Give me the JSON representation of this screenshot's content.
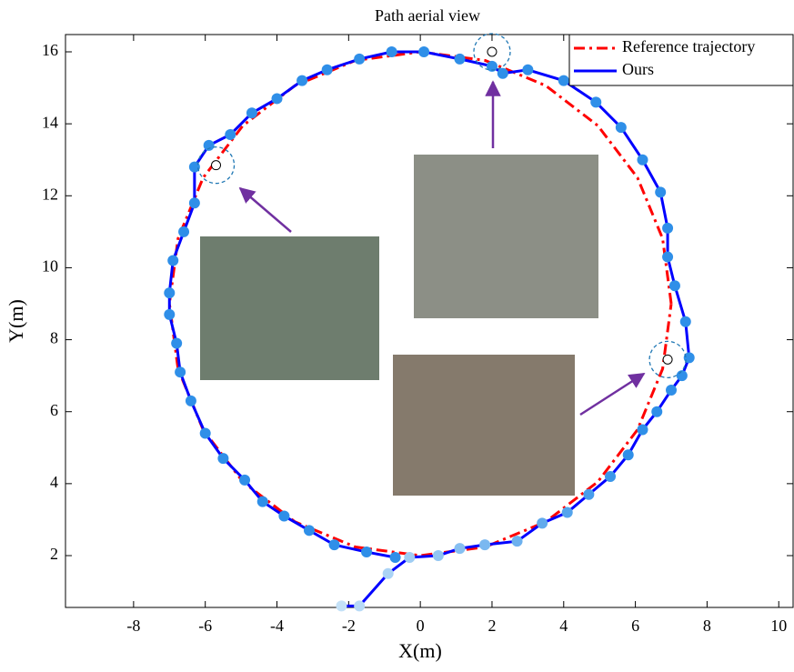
{
  "chart_data": {
    "type": "line",
    "title": "Path aerial view",
    "xlabel": "X(m)",
    "ylabel": "Y(m)",
    "xlim": [
      -9.9,
      10.4
    ],
    "ylim": [
      0.56,
      16.48
    ],
    "xticks": [
      -8,
      -6,
      -4,
      -2,
      0,
      2,
      4,
      6,
      8,
      10
    ],
    "yticks": [
      2,
      4,
      6,
      8,
      10,
      12,
      14,
      16
    ],
    "legend": "upper right",
    "series": [
      {
        "name": "Reference trajectory",
        "color": "#ff0000",
        "style": "dashdot",
        "x": [
          7,
          6.76,
          6.06,
          4.95,
          3.5,
          1.81,
          0,
          -1.81,
          -3.5,
          -4.95,
          -6.06,
          -6.76,
          -7,
          -6.76,
          -6.06,
          -4.95,
          -3.5,
          -1.81,
          0,
          1.81,
          3.5,
          4.95,
          6.06,
          6.76,
          7
        ],
        "values": [
          9,
          10.81,
          12.5,
          13.95,
          15.06,
          15.76,
          16,
          15.76,
          15.06,
          13.95,
          12.5,
          10.81,
          9,
          7.19,
          5.5,
          4.05,
          2.94,
          2.24,
          2,
          2.24,
          2.94,
          4.05,
          5.5,
          7.19,
          9
        ]
      },
      {
        "name": "Ours",
        "color": "#0000ff",
        "style": "solid",
        "marker_colors": [
          "#c4e1f7",
          "#2f8fe8"
        ],
        "x": [
          -2.2,
          -1.7,
          -0.9,
          -0.3,
          0.5,
          1.1,
          1.8,
          2.7,
          3.4,
          4.1,
          4.7,
          5.3,
          5.8,
          6.2,
          6.6,
          7.0,
          7.3,
          7.5,
          7.4,
          7.1,
          6.9,
          6.9,
          6.7,
          6.2,
          5.6,
          4.9,
          4.0,
          3.0,
          2.3,
          2.0,
          1.1,
          0.1,
          -0.8,
          -1.7,
          -2.6,
          -3.3,
          -4.0,
          -4.7,
          -5.3,
          -5.9,
          -6.3,
          -6.3,
          -6.6,
          -6.9,
          -7.0,
          -7.0,
          -6.8,
          -6.7,
          -6.4,
          -6.0,
          -5.5,
          -4.9,
          -4.4,
          -3.8,
          -3.1,
          -2.4,
          -1.5,
          -0.7
        ],
        "values": [
          0.6,
          0.6,
          1.5,
          1.95,
          2.0,
          2.2,
          2.3,
          2.4,
          2.9,
          3.2,
          3.7,
          4.2,
          4.8,
          5.5,
          6.0,
          6.6,
          7.0,
          7.5,
          8.5,
          9.5,
          10.3,
          11.1,
          12.1,
          13.0,
          13.9,
          14.6,
          15.2,
          15.5,
          15.4,
          15.6,
          15.8,
          16.0,
          16.0,
          15.8,
          15.5,
          15.2,
          14.7,
          14.3,
          13.7,
          13.4,
          12.8,
          11.8,
          11.0,
          10.2,
          9.3,
          8.7,
          7.9,
          7.1,
          6.3,
          5.4,
          4.7,
          4.1,
          3.5,
          3.1,
          2.7,
          2.3,
          2.1,
          1.95
        ]
      }
    ],
    "highlights": {
      "color": "#1f77b4",
      "x": [
        2,
        -5.7,
        6.9
      ],
      "values": [
        16,
        12.85,
        7.45
      ]
    }
  }
}
